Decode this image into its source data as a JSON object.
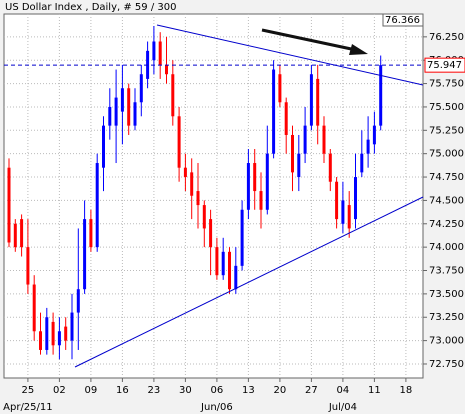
{
  "chart_data": {
    "type": "candlestick",
    "title": "US Dollar Index , Daily, # 59 / 300",
    "categories": [
      null,
      null,
      null,
      "25",
      null,
      null,
      null,
      null,
      "02",
      null,
      null,
      null,
      null,
      "09",
      null,
      null,
      null,
      null,
      "16",
      null,
      null,
      null,
      null,
      "23",
      null,
      null,
      null,
      null,
      "30",
      null,
      null,
      null,
      null,
      "06",
      null,
      null,
      null,
      null,
      "13",
      null,
      null,
      null,
      null,
      "20",
      null,
      null,
      null,
      null,
      "27",
      null,
      null,
      null,
      null,
      "04",
      null,
      null,
      null,
      null,
      "11",
      null,
      null,
      null,
      null,
      "18"
    ],
    "category_sublabels": [
      null,
      null,
      null,
      "Apr/25/11",
      null,
      null,
      null,
      null,
      null,
      null,
      null,
      null,
      null,
      null,
      null,
      null,
      null,
      null,
      null,
      null,
      null,
      null,
      null,
      null,
      null,
      null,
      null,
      null,
      null,
      null,
      null,
      null,
      null,
      "Jun/06",
      null,
      null,
      null,
      null,
      null,
      null,
      null,
      null,
      null,
      null,
      null,
      null,
      null,
      null,
      null,
      null,
      null,
      null,
      null,
      "Jul/04",
      null,
      null,
      null,
      null,
      null,
      null,
      null,
      null,
      null,
      null
    ],
    "open": [
      74.85,
      74.25,
      74.3,
      74.0,
      73.6,
      73.1,
      72.9,
      73.2,
      72.95,
      73.15,
      73.0,
      73.3,
      73.55,
      74.3,
      74.0,
      74.85,
      75.3,
      75.3,
      75.45,
      75.7,
      75.3,
      75.55,
      75.8,
      76.0,
      76.2,
      75.95,
      75.85,
      75.4,
      74.85,
      74.8,
      74.6,
      74.45,
      74.3,
      74.0,
      73.7,
      73.95,
      73.55,
      73.8,
      74.4,
      74.9,
      74.6,
      74.4,
      75.0,
      75.85,
      75.55,
      75.2,
      74.75,
      75.0,
      75.3,
      75.8,
      75.3,
      75.0,
      74.7,
      74.25,
      74.45,
      74.3,
      74.8,
      75.0,
      75.1,
      75.3,
      null,
      null,
      null,
      null
    ],
    "high": [
      74.95,
      74.3,
      74.35,
      74.3,
      73.7,
      73.3,
      73.35,
      73.3,
      73.25,
      73.25,
      73.5,
      74.2,
      74.5,
      74.4,
      75.0,
      75.4,
      75.7,
      75.9,
      75.95,
      75.75,
      75.7,
      75.95,
      76.2,
      76.366,
      76.3,
      76.25,
      76.0,
      75.5,
      75.0,
      74.95,
      74.9,
      74.5,
      74.4,
      74.1,
      74.1,
      74.0,
      74.0,
      74.5,
      75.05,
      75.05,
      74.8,
      75.3,
      76.0,
      75.95,
      75.6,
      75.3,
      75.2,
      75.5,
      75.95,
      75.95,
      75.4,
      75.05,
      74.75,
      74.7,
      74.6,
      75.0,
      75.25,
      75.4,
      75.45,
      76.05,
      null,
      null,
      null,
      null
    ],
    "low": [
      74.0,
      73.95,
      73.9,
      73.5,
      73.0,
      72.85,
      72.85,
      72.85,
      72.8,
      72.9,
      72.8,
      72.9,
      73.5,
      73.95,
      73.95,
      74.6,
      75.15,
      74.9,
      75.1,
      75.2,
      75.25,
      75.4,
      75.7,
      75.85,
      75.8,
      75.75,
      75.3,
      74.7,
      74.6,
      74.3,
      74.2,
      74.0,
      73.7,
      73.65,
      73.65,
      73.5,
      73.5,
      73.75,
      74.3,
      74.4,
      74.2,
      74.35,
      74.95,
      75.5,
      75.0,
      74.6,
      74.6,
      74.9,
      75.25,
      75.1,
      74.9,
      74.6,
      74.2,
      74.15,
      74.1,
      74.2,
      74.75,
      74.85,
      75.0,
      75.25,
      null,
      null,
      null,
      null
    ],
    "close": [
      74.05,
      74.0,
      74.0,
      73.6,
      73.1,
      72.9,
      73.25,
      72.95,
      73.1,
      73.0,
      73.3,
      73.55,
      74.3,
      74.0,
      74.9,
      75.3,
      75.5,
      75.6,
      75.7,
      75.3,
      75.55,
      75.85,
      76.1,
      76.2,
      75.95,
      75.85,
      75.4,
      74.85,
      74.75,
      74.55,
      74.45,
      74.2,
      74.0,
      73.7,
      73.95,
      73.55,
      73.8,
      74.4,
      74.9,
      74.6,
      74.4,
      75.0,
      75.9,
      75.55,
      75.2,
      74.8,
      75.0,
      75.3,
      75.85,
      75.3,
      75.0,
      74.7,
      74.3,
      74.5,
      74.2,
      74.75,
      75.0,
      75.15,
      75.3,
      75.947,
      null,
      null,
      null,
      null
    ],
    "up_color": "#0000ff",
    "down_color": "#ff0000",
    "last_price": 75.947,
    "ylim": [
      72.6,
      76.366
    ],
    "yticks": [
      {
        "value": 72.75,
        "label": "72.750"
      },
      {
        "value": 73.0,
        "label": "73.000"
      },
      {
        "value": 73.25,
        "label": "73.250"
      },
      {
        "value": 73.5,
        "label": "73.500"
      },
      {
        "value": 73.75,
        "label": "73.750"
      },
      {
        "value": 74.0,
        "label": "74.000"
      },
      {
        "value": 74.25,
        "label": "74.250"
      },
      {
        "value": 74.5,
        "label": "74.500"
      },
      {
        "value": 74.75,
        "label": "74.750"
      },
      {
        "value": 75.0,
        "label": "75.000"
      },
      {
        "value": 75.25,
        "label": "75.250"
      },
      {
        "value": 75.5,
        "label": "75.500"
      },
      {
        "value": 75.75,
        "label": "75.750"
      },
      {
        "value": 76.0,
        "label": "76.000"
      },
      {
        "value": 76.25,
        "label": "76.250"
      }
    ],
    "grid": true
  }
}
